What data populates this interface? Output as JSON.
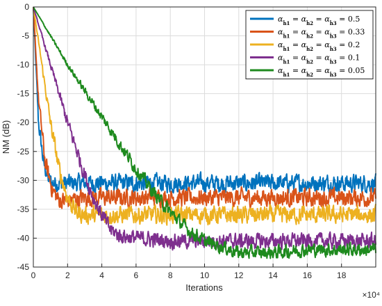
{
  "chart_data": {
    "type": "line",
    "xlabel": "Iterations",
    "ylabel": "NM (dB)",
    "x_multiplier_label": "×10⁴",
    "xlim": [
      0,
      20
    ],
    "ylim": [
      -45,
      0
    ],
    "xticks": [
      0,
      2,
      4,
      6,
      8,
      10,
      12,
      14,
      16,
      18
    ],
    "yticks": [
      0,
      -5,
      -10,
      -15,
      -20,
      -25,
      -30,
      -35,
      -40,
      -45
    ],
    "grid": true,
    "legend_position": "top-right",
    "series": [
      {
        "name": "α_{ĥ1} = α_{ĥ2} = α_{ĥ3} = 0.5",
        "legend_alpha": "0.5",
        "color": "#0072BD",
        "x": [
          0,
          0.3,
          0.6,
          0.9,
          1.2,
          1.6,
          2,
          3,
          5,
          8,
          12,
          16,
          20
        ],
        "y": [
          0,
          -20,
          -27,
          -30,
          -30.5,
          -30.5,
          -30.5,
          -30.5,
          -30.5,
          -30.5,
          -30.5,
          -30.5,
          -30.5
        ],
        "noise_amplitude": 2.3
      },
      {
        "name": "α_{ĥ1} = α_{ĥ2} = α_{ĥ3} = 0.33",
        "legend_alpha": "0.33",
        "color": "#D95319",
        "x": [
          0,
          0.3,
          0.7,
          1.1,
          1.5,
          2,
          3,
          5,
          8,
          12,
          16,
          20
        ],
        "y": [
          0,
          -16,
          -27,
          -31.5,
          -33.5,
          -33.5,
          -33,
          -33,
          -33,
          -33,
          -33,
          -33
        ],
        "noise_amplitude": 2.3
      },
      {
        "name": "α_{ĥ1} = α_{ĥ2} = α_{ĥ3} = 0.2",
        "legend_alpha": "0.2",
        "color": "#EDB120",
        "x": [
          0,
          0.5,
          1,
          1.5,
          2,
          2.5,
          3,
          4,
          6,
          8,
          12,
          16,
          20
        ],
        "y": [
          0,
          -10,
          -20,
          -28,
          -33,
          -35.5,
          -36,
          -36,
          -36,
          -36,
          -36,
          -36,
          -36
        ],
        "noise_amplitude": 2.3
      },
      {
        "name": "α_{ĥ1} = α_{ĥ2} = α_{ĥ3} = 0.1",
        "legend_alpha": "0.1",
        "color": "#7E2F8E",
        "x": [
          0,
          1,
          2,
          3,
          3.5,
          4,
          4.5,
          5,
          6,
          8,
          10,
          12,
          16,
          20
        ],
        "y": [
          0,
          -10,
          -20,
          -29,
          -33,
          -36,
          -38.5,
          -39.5,
          -40,
          -40.5,
          -40.5,
          -40.5,
          -40.5,
          -40.5
        ],
        "noise_amplitude": 2.0
      },
      {
        "name": "α_{ĥ1} = α_{ĥ2} = α_{ĥ3} = 0.05",
        "legend_alpha": "0.05",
        "color": "#1E8A1E",
        "x": [
          0,
          1,
          2,
          3,
          4,
          5,
          6,
          7,
          8,
          9,
          10,
          11,
          12,
          14,
          16,
          18,
          20
        ],
        "y": [
          0,
          -5,
          -10,
          -14.5,
          -19,
          -23.5,
          -28,
          -32,
          -35.5,
          -38.5,
          -40.5,
          -41.5,
          -42.5,
          -42.5,
          -42,
          -42,
          -42
        ],
        "noise_amplitude": 1.7
      }
    ]
  }
}
